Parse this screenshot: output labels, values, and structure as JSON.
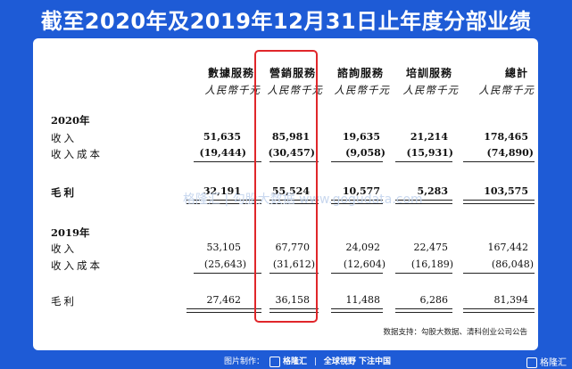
{
  "title": "截至2020年及2019年12月31日止年度分部业绩",
  "columns": [
    {
      "header": "數據服務",
      "unit": "人民幣千元"
    },
    {
      "header": "營銷服務",
      "unit": "人民幣千元"
    },
    {
      "header": "諮詢服務",
      "unit": "人民幣千元"
    },
    {
      "header": "培訓服務",
      "unit": "人民幣千元"
    },
    {
      "header": "總計",
      "unit": "人民幣千元"
    }
  ],
  "y2020": {
    "label": "2020年",
    "revenue": {
      "label": "收入",
      "values": [
        "51,635",
        "85,981",
        "19,635",
        "21,214",
        "178,465"
      ]
    },
    "cost": {
      "label": "收入成本",
      "values": [
        "(19,444)",
        "(30,457)",
        "(9,058)",
        "(15,931)",
        "(74,890)"
      ]
    },
    "gross": {
      "label": "毛利",
      "values": [
        "32,191",
        "55,524",
        "10,577",
        "5,283",
        "103,575"
      ]
    }
  },
  "y2019": {
    "label": "2019年",
    "revenue": {
      "label": "收入",
      "values": [
        "53,105",
        "67,770",
        "24,092",
        "22,475",
        "167,442"
      ]
    },
    "cost": {
      "label": "收入成本",
      "values": [
        "(25,643)",
        "(31,612)",
        "(12,604)",
        "(16,189)",
        "(86,048)"
      ]
    },
    "gross": {
      "label": "毛利",
      "values": [
        "27,462",
        "36,158",
        "11,488",
        "6,286",
        "81,394"
      ]
    }
  },
  "watermark": "格隆汇  |  勾股大数据  www.gogudata.com",
  "source": "数据支持：勾股大数据、清科创业公司公告",
  "footer": {
    "made_by": "图片制作：",
    "brand": "格隆汇",
    "slogan": "全球視野 下注中国"
  },
  "corner_brand": "格隆汇",
  "colors": {
    "background": "#1e5bd6",
    "highlight": "#e0262a"
  }
}
